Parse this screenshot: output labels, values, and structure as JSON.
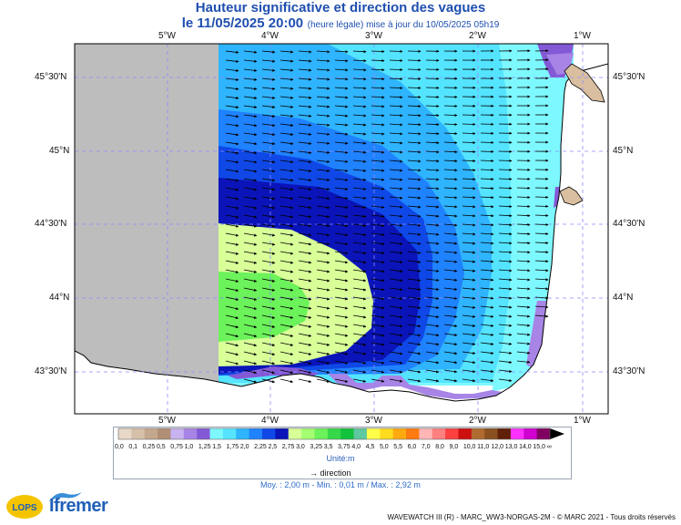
{
  "title": {
    "line1": "Hauteur significative et direction des vagues",
    "date": "le 11/05/2025 20:00",
    "note": "(heure légale) mise à jour du 10/05/2025 05h19"
  },
  "axes": {
    "lon_labels": [
      "5°W",
      "4°W",
      "3°W",
      "2°W",
      "1°W"
    ],
    "lat_labels": [
      "45°30'N",
      "45°N",
      "44°30'N",
      "44°N",
      "43°30'N"
    ]
  },
  "legend": {
    "colors": [
      "#e8d8c8",
      "#d6c0aa",
      "#c3a88e",
      "#b08f76",
      "#c8b2f0",
      "#a784e6",
      "#8459d6",
      "#7ef8ff",
      "#54e4ff",
      "#2fb4ff",
      "#1f82ff",
      "#0f48e6",
      "#0a14b8",
      "#d8ff98",
      "#a4ff72",
      "#6cf25a",
      "#36d84a",
      "#12c23c",
      "#5ec8a0",
      "#ffff4a",
      "#ffdc1e",
      "#ffaa10",
      "#ff7a10",
      "#ffb6b6",
      "#ff8080",
      "#ff4040",
      "#cc1010",
      "#b06c30",
      "#8a5020",
      "#602008",
      "#ff30ff",
      "#d000d0",
      "#800060"
    ],
    "labels": [
      "0,0",
      "0,1",
      "0,25",
      "0,5",
      "0,75",
      "1,0",
      "1,25",
      "1,5",
      "1,75",
      "2,0",
      "2,25",
      "2,5",
      "2,75",
      "3,0",
      "3,25",
      "3,5",
      "3,75",
      "4,0",
      "4,5",
      "5,0",
      "5,5",
      "6,0",
      "7,0",
      "8,0",
      "9,0",
      "10,0",
      "11,0",
      "12,0",
      "13,0",
      "14,0",
      "15,0",
      "∞"
    ],
    "unit": "Unité:m",
    "direction_label": "direction"
  },
  "stats": "Moy. : 2,00 m   -   Min. : 0,01 m / Max. : 2,92 m",
  "footer": "WAVEWATCH III (R) - MARC_WW3-NORGAS-2M - © MARC 2021 - Tous droits réservés",
  "logos": {
    "lops": "LOPS",
    "ifremer": "Ifremer"
  }
}
